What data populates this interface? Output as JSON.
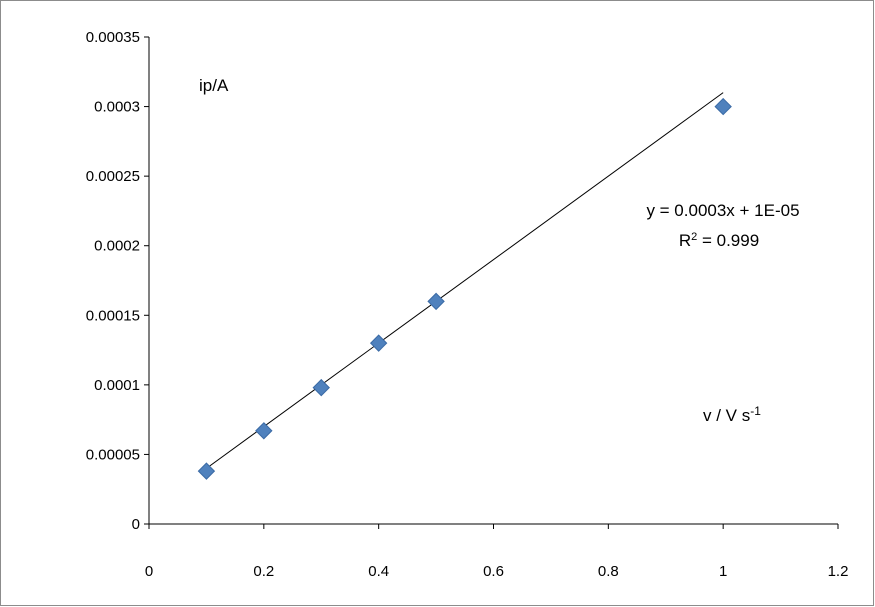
{
  "chart_data": {
    "type": "scatter",
    "x": [
      0.1,
      0.2,
      0.3,
      0.4,
      0.5,
      1.0
    ],
    "y": [
      3.8e-05,
      6.7e-05,
      9.8e-05,
      0.00013,
      0.00016,
      0.0003
    ],
    "xlim": [
      0,
      1.2
    ],
    "ylim": [
      0,
      0.00035
    ],
    "xticks": [
      0,
      0.2,
      0.4,
      0.6,
      0.8,
      1,
      1.2
    ],
    "xtick_labels": [
      "0",
      "0.2",
      "0.4",
      "0.6",
      "0.8",
      "1",
      "1.2"
    ],
    "yticks": [
      0,
      5e-05,
      0.0001,
      0.00015,
      0.0002,
      0.00025,
      0.0003,
      0.00035
    ],
    "ytick_labels": [
      "0",
      "0.00005",
      "0.0001",
      "0.00015",
      "0.0002",
      "0.00025",
      "0.0003",
      "0.00035"
    ],
    "grid": false,
    "marker": "diamond",
    "marker_color": "#4f81bd",
    "trendline": {
      "type": "linear",
      "slope": 0.0003,
      "intercept": 1e-05,
      "color": "#000000"
    },
    "equation": "y = 0.0003x + 1E-05",
    "r_squared_prefix": "R",
    "r_squared_sup": "2",
    "r_squared_value": " = 0.999",
    "ylabel": "ip/A",
    "xlabel_main": "v / V s",
    "xlabel_sup": "-1"
  }
}
